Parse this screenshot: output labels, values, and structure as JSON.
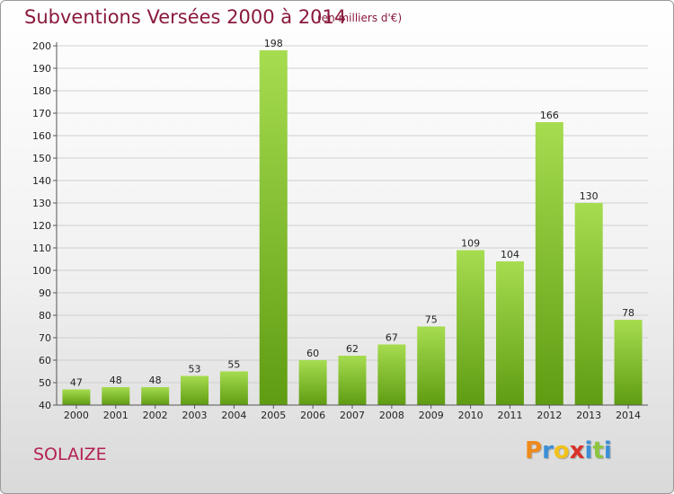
{
  "header": {
    "title": "Subventions Versées 2000 à 2014",
    "subtitle": "(en milliers d'€)"
  },
  "footer": {
    "location": "SOLAIZE",
    "brand": "Proxiti",
    "brand_letters": [
      {
        "ch": "P",
        "color": "#f08a1c"
      },
      {
        "ch": "r",
        "color": "#3b8fd6"
      },
      {
        "ch": "o",
        "color": "#f2c21b"
      },
      {
        "ch": "x",
        "color": "#d9322a"
      },
      {
        "ch": "i",
        "color": "#3b8fd6"
      },
      {
        "ch": "t",
        "color": "#8cc63e"
      },
      {
        "ch": "i",
        "color": "#3b8fd6"
      }
    ]
  },
  "colors": {
    "bar_top": "#a6dc50",
    "bar_bottom": "#5f9c12",
    "grid": "#cfcfcf",
    "axis": "#555555",
    "title": "#8a1a3c",
    "location": "#b3204f"
  },
  "chart_data": {
    "type": "bar",
    "title": "Subventions Versées 2000 à 2014",
    "subtitle": "(en milliers d'€)",
    "categories": [
      "2000",
      "2001",
      "2002",
      "2003",
      "2004",
      "2005",
      "2006",
      "2007",
      "2008",
      "2009",
      "2010",
      "2011",
      "2012",
      "2013",
      "2014"
    ],
    "values": [
      47,
      48,
      48,
      53,
      55,
      198,
      60,
      62,
      67,
      75,
      109,
      104,
      166,
      130,
      78
    ],
    "ylim": [
      40,
      200
    ],
    "yticks": [
      40,
      50,
      60,
      70,
      80,
      90,
      100,
      110,
      120,
      130,
      140,
      150,
      160,
      170,
      180,
      190,
      200
    ],
    "grid": true,
    "xlabel": "",
    "ylabel": ""
  }
}
